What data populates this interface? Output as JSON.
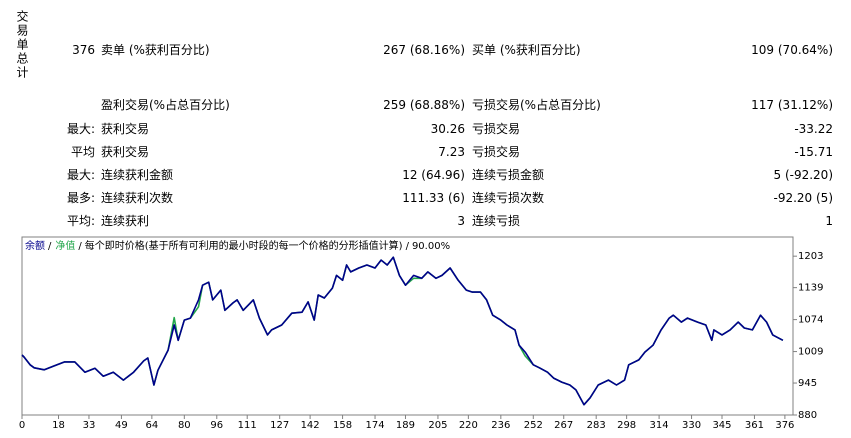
{
  "summary": {
    "side_label": "交易单总计",
    "rows": [
      {
        "prefix": "376",
        "label": "卖单 (%获利百分比)",
        "value": "267 (68.16%)",
        "label2": "买单 (%获利百分比)",
        "value2": "109 (70.64%)"
      },
      {
        "label": "盈利交易(%占总百分比)",
        "value": "259 (68.88%)",
        "label2": "亏损交易(%占总百分比)",
        "value2": "117 (31.12%)"
      },
      {
        "prefix": "最大:",
        "label": "获利交易",
        "value": "30.26",
        "label2": "亏损交易",
        "value2": "-33.22"
      },
      {
        "prefix": "平均",
        "label": "获利交易",
        "value": "7.23",
        "label2": "亏损交易",
        "value2": "-15.71"
      },
      {
        "prefix": "最大:",
        "label": "连续获利金额",
        "value": "12 (64.96)",
        "label2": "连续亏损金额",
        "value2": "5 (-92.20)"
      },
      {
        "prefix": "最多:",
        "label": "连续获利次数",
        "value": "111.33 (6)",
        "label2": "连续亏损次数",
        "value2": "-92.20 (5)"
      },
      {
        "prefix": "平均:",
        "label": "连续获利",
        "value": "3",
        "label2": "连续亏损",
        "value2": "1"
      }
    ]
  },
  "chart_data": {
    "type": "line",
    "subtitle": "每个即时价格(基于所有可利用的最小时段的每一个价格的分形插值计算)",
    "quality": "90.00%",
    "separator": "/",
    "x": [
      0,
      1,
      4,
      6,
      11,
      16,
      21,
      26,
      31,
      36,
      40,
      45,
      50,
      55,
      60,
      62,
      65,
      67,
      72,
      75,
      77,
      80,
      83,
      87,
      89,
      92,
      94,
      98,
      100,
      104,
      106,
      109,
      114,
      117,
      121,
      123,
      128,
      133,
      138,
      141,
      144,
      146,
      149,
      153,
      155,
      158,
      160,
      162,
      166,
      170,
      174,
      177,
      180,
      183,
      186,
      189,
      193,
      197,
      200,
      204,
      207,
      211,
      215,
      219,
      222,
      226,
      229,
      232,
      236,
      239,
      243,
      245,
      248,
      252,
      255,
      259,
      262,
      266,
      270,
      273,
      277,
      280,
      284,
      289,
      293,
      297,
      299,
      304,
      307,
      311,
      315,
      319,
      321,
      325,
      328,
      333,
      337,
      340,
      341,
      345,
      349,
      353,
      356,
      360,
      364,
      367,
      370,
      375
    ],
    "series": [
      {
        "name": "净值",
        "color": "#22a64a",
        "values": [
          1002,
          998,
          982,
          976,
          972,
          980,
          988,
          988,
          967,
          975,
          959,
          967,
          951,
          967,
          990,
          996,
          941,
          971,
          1012,
          1078,
          1032,
          1073,
          1077,
          1100,
          1144,
          1150,
          1114,
          1134,
          1093,
          1108,
          1114,
          1093,
          1114,
          1077,
          1043,
          1053,
          1063,
          1087,
          1089,
          1110,
          1073,
          1124,
          1118,
          1138,
          1164,
          1154,
          1185,
          1171,
          1179,
          1185,
          1179,
          1195,
          1185,
          1201,
          1164,
          1144,
          1158,
          1158,
          1171,
          1158,
          1164,
          1179,
          1154,
          1134,
          1130,
          1130,
          1114,
          1083,
          1073,
          1063,
          1053,
          1022,
          1000,
          982,
          976,
          967,
          955,
          947,
          941,
          931,
          901,
          915,
          941,
          951,
          941,
          951,
          982,
          992,
          1008,
          1022,
          1053,
          1077,
          1083,
          1069,
          1077,
          1069,
          1063,
          1032,
          1053,
          1043,
          1053,
          1069,
          1057,
          1053,
          1083,
          1069,
          1043,
          1032
        ]
      },
      {
        "name": "余额",
        "color": "#00008b",
        "values": [
          1002,
          998,
          982,
          976,
          972,
          980,
          988,
          988,
          967,
          975,
          959,
          967,
          951,
          967,
          990,
          996,
          941,
          971,
          1012,
          1063,
          1032,
          1073,
          1077,
          1114,
          1144,
          1150,
          1114,
          1134,
          1093,
          1108,
          1114,
          1093,
          1114,
          1077,
          1043,
          1053,
          1063,
          1087,
          1089,
          1110,
          1073,
          1124,
          1118,
          1138,
          1164,
          1154,
          1185,
          1171,
          1179,
          1185,
          1179,
          1195,
          1185,
          1201,
          1164,
          1144,
          1164,
          1158,
          1171,
          1158,
          1164,
          1179,
          1154,
          1134,
          1130,
          1130,
          1114,
          1083,
          1073,
          1063,
          1053,
          1022,
          1008,
          982,
          976,
          967,
          955,
          947,
          941,
          931,
          901,
          915,
          941,
          951,
          941,
          951,
          982,
          992,
          1008,
          1022,
          1053,
          1077,
          1083,
          1069,
          1077,
          1069,
          1063,
          1032,
          1053,
          1043,
          1053,
          1069,
          1057,
          1053,
          1083,
          1069,
          1043,
          1032
        ]
      }
    ],
    "xlim": [
      0,
      380
    ],
    "xticks": [
      0,
      18,
      33,
      49,
      64,
      80,
      96,
      111,
      127,
      142,
      158,
      174,
      189,
      205,
      220,
      236,
      252,
      267,
      283,
      298,
      314,
      330,
      345,
      361,
      376
    ],
    "ylim": [
      880,
      1242
    ],
    "yticks": [
      880,
      945,
      1009,
      1074,
      1139,
      1203
    ],
    "grid": false
  }
}
